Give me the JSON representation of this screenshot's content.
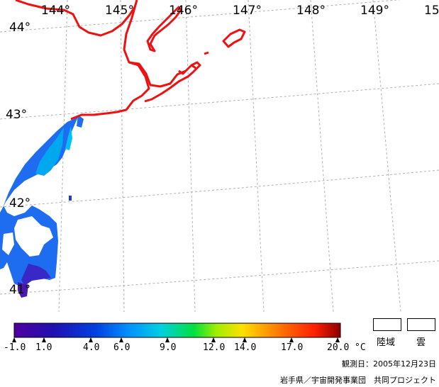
{
  "map": {
    "lon_labels": [
      "144°",
      "145°",
      "146°",
      "147°",
      "148°",
      "149°",
      "15"
    ],
    "lat_labels": [
      "44°",
      "43°",
      "42°",
      "41°"
    ]
  },
  "colorbar": {
    "unit": "°C",
    "ticks": [
      "-1.0",
      "1.0",
      "4.0",
      "6.0",
      "9.0",
      "12.0",
      "14.0",
      "17.0",
      "20.0"
    ],
    "colors": [
      "#5000a0",
      "#1010b0",
      "#0070ff",
      "#00d0ff",
      "#00e050",
      "#ffff00",
      "#ff8000",
      "#ff3000",
      "#8c0000"
    ]
  },
  "legend": {
    "land": "陸域",
    "cloud": "雲"
  },
  "footer": {
    "obs_date": "観測日：2005年12月23日",
    "credit": "岩手県／宇宙開発事業団　共同プロジェクト"
  },
  "coastline_color": "#ee1111"
}
